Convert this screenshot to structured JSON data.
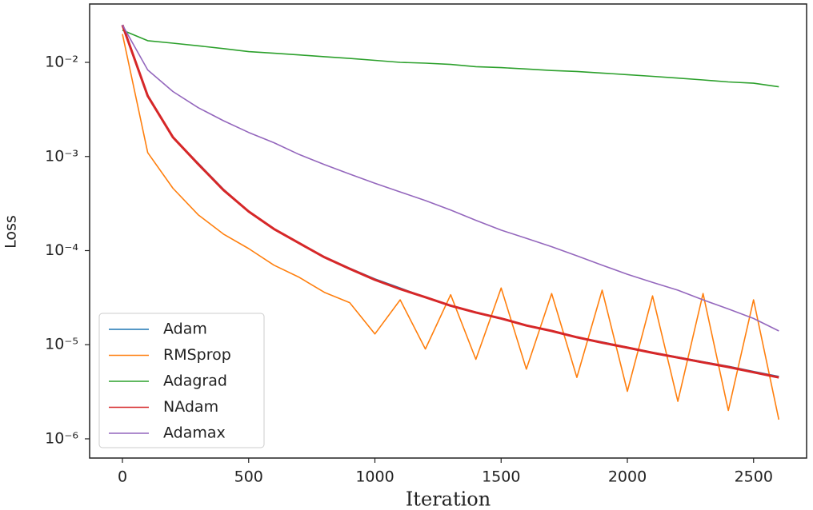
{
  "chart_data": {
    "type": "line",
    "x_label": "Iteration",
    "y_label": "Loss",
    "x": [
      0,
      100,
      200,
      300,
      400,
      500,
      600,
      700,
      800,
      900,
      1000,
      1100,
      1200,
      1300,
      1400,
      1500,
      1600,
      1700,
      1800,
      1900,
      2000,
      2100,
      2200,
      2300,
      2400,
      2500,
      2600
    ],
    "series": [
      {
        "name": "Adam",
        "color": "#1f77b4",
        "values": [
          0.025,
          0.0045,
          0.0016,
          0.00085,
          0.00045,
          0.00026,
          0.00017,
          0.00012,
          8.6e-05,
          6.5e-05,
          5e-05,
          4e-05,
          3.2e-05,
          2.6e-05,
          2.2e-05,
          1.9e-05,
          1.6e-05,
          1.4e-05,
          1.2e-05,
          1.07e-05,
          9.4e-06,
          8.3e-06,
          7.4e-06,
          6.6e-06,
          5.9e-06,
          5.2e-06,
          4.6e-06
        ]
      },
      {
        "name": "RMSprop",
        "color": "#ff7f0e",
        "values": [
          0.02,
          0.0011,
          0.00046,
          0.00024,
          0.00015,
          0.000105,
          7e-05,
          5.2e-05,
          3.6e-05,
          2.8e-05,
          1.3e-05,
          3e-05,
          9e-06,
          3.4e-05,
          7e-06,
          4e-05,
          5.5e-06,
          3.5e-05,
          4.5e-06,
          3.8e-05,
          3.2e-06,
          3.3e-05,
          2.5e-06,
          3.5e-05,
          2e-06,
          3e-05,
          1.6e-06
        ]
      },
      {
        "name": "Adagrad",
        "color": "#2ca02c",
        "values": [
          0.022,
          0.017,
          0.016,
          0.015,
          0.014,
          0.013,
          0.0125,
          0.012,
          0.0115,
          0.011,
          0.0105,
          0.01,
          0.0098,
          0.0095,
          0.009,
          0.0088,
          0.0085,
          0.0082,
          0.008,
          0.0077,
          0.0074,
          0.0071,
          0.0068,
          0.0065,
          0.0062,
          0.006,
          0.0055
        ]
      },
      {
        "name": "NAdam",
        "color": "#d62728",
        "values": [
          0.025,
          0.0044,
          0.0016,
          0.00083,
          0.00044,
          0.00026,
          0.00017,
          0.00012,
          8.5e-05,
          6.4e-05,
          4.9e-05,
          3.9e-05,
          3.2e-05,
          2.6e-05,
          2.2e-05,
          1.9e-05,
          1.6e-05,
          1.4e-05,
          1.2e-05,
          1.05e-05,
          9.3e-06,
          8.2e-06,
          7.3e-06,
          6.5e-06,
          5.8e-06,
          5.1e-06,
          4.5e-06
        ]
      },
      {
        "name": "Adamax",
        "color": "#9467bd",
        "values": [
          0.025,
          0.0083,
          0.0049,
          0.0033,
          0.0024,
          0.0018,
          0.0014,
          0.00105,
          0.00082,
          0.00065,
          0.00052,
          0.00042,
          0.00034,
          0.00027,
          0.00021,
          0.000165,
          0.000135,
          0.00011,
          8.8e-05,
          7e-05,
          5.6e-05,
          4.6e-05,
          3.8e-05,
          3e-05,
          2.4e-05,
          1.9e-05,
          1.4e-05
        ]
      }
    ],
    "xlim": [
      -130,
      2710
    ],
    "xticks": [
      0,
      500,
      1000,
      1500,
      2000,
      2500
    ],
    "ylim": [
      6.25e-07,
      0.0417
    ],
    "log_y": true,
    "yticks": [
      {
        "value": 0.01,
        "label": "10⁻²"
      },
      {
        "value": 0.001,
        "label": "10⁻³"
      },
      {
        "value": 0.0001,
        "label": "10⁻⁴"
      },
      {
        "value": 1e-05,
        "label": "10⁻⁵"
      },
      {
        "value": 1e-06,
        "label": "10⁻⁶"
      }
    ],
    "legend": "lower left"
  }
}
